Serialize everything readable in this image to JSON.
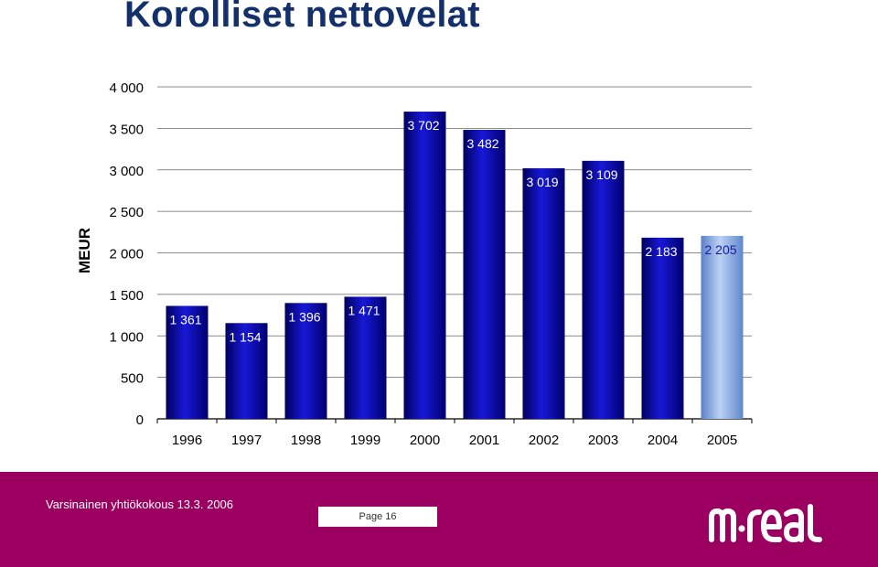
{
  "title": "Korolliset nettovelat",
  "chart_data": {
    "type": "bar",
    "title": "",
    "ylabel": "MEUR",
    "xlabel": "",
    "ylim": [
      0,
      4000
    ],
    "yticks": [
      "0",
      "500",
      "1 000",
      "1 500",
      "2 000",
      "2 500",
      "3 000",
      "3 500",
      "4 000"
    ],
    "ytick_values": [
      0,
      500,
      1000,
      1500,
      2000,
      2500,
      3000,
      3500,
      4000
    ],
    "categories": [
      "1996",
      "1997",
      "1998",
      "1999",
      "2000",
      "2001",
      "2002",
      "2003",
      "2004",
      "2005"
    ],
    "values": [
      1361,
      1154,
      1396,
      1471,
      3702,
      3482,
      3019,
      3109,
      2183,
      2205
    ],
    "labels": [
      "1 361",
      "1 154",
      "1 396",
      "1 471",
      "3 702",
      "3 482",
      "3 019",
      "3 109",
      "2 183",
      "2 205"
    ],
    "grid": true,
    "colors": {
      "bar": "#0a0a9e",
      "bar_highlight": "#8fb0e8",
      "highlight_category": "2005"
    }
  },
  "footer": {
    "meeting": "Varsinainen yhtiökokous 13.3. 2006",
    "page": "Page 16",
    "logo_text": "m·real",
    "background": "#9b0060"
  }
}
